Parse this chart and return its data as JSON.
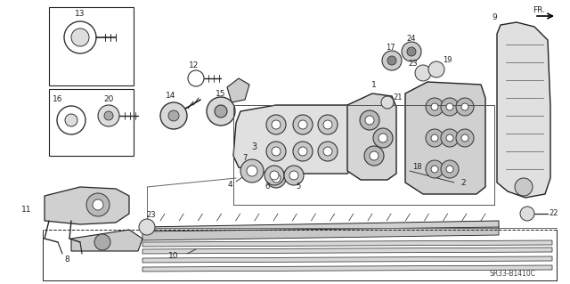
{
  "bg_color": "#ffffff",
  "line_color": "#222222",
  "diagram_code": "SR33-B1410C",
  "figsize": [
    6.4,
    3.19
  ],
  "dpi": 100
}
